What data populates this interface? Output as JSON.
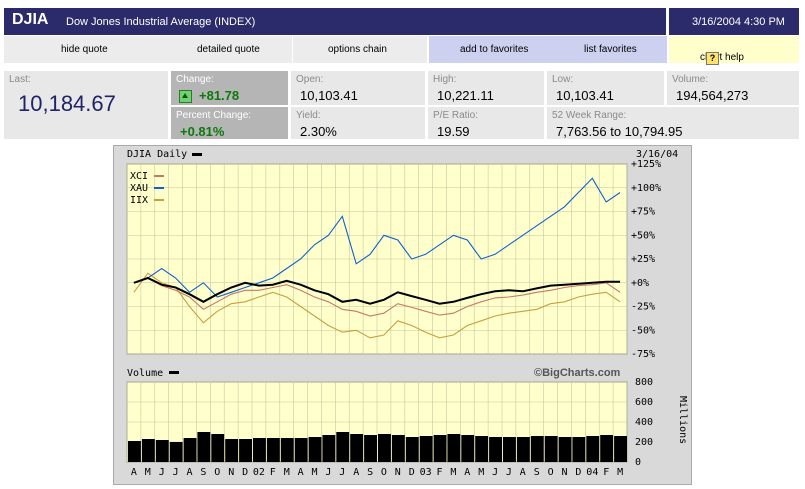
{
  "header": {
    "symbol": "DJIA",
    "name": "Dow Jones Industrial Average (INDEX)",
    "datetime": "3/16/2004 4:30 PM"
  },
  "nav": {
    "hide_quote": "hide quote",
    "detailed_quote": "detailed quote",
    "options_chain": "options chain",
    "add_favorites": "add to favorites",
    "list_favorites": "list favorites",
    "chart_help": "chart help",
    "help_icon_text": "?"
  },
  "quote": {
    "last_label": "Last:",
    "last_value": "10,184.67",
    "change_label": "Change:",
    "change_value": "+81.78",
    "pct_change_label": "Percent Change:",
    "pct_change_value": "+0.81%",
    "open_label": "Open:",
    "open_value": "10,103.41",
    "yield_label": "Yield:",
    "yield_value": "2.30%",
    "high_label": "High:",
    "high_value": "10,221.11",
    "pe_label": "P/E Ratio:",
    "pe_value": "19.59",
    "low_label": "Low:",
    "low_value": "10,103.41",
    "week52_label": "52 Week Range:",
    "week52_value": "7,763.56 to 10,794.95",
    "volume_label": "Volume:",
    "volume_value": "194,564,273"
  },
  "chart": {
    "price_panel_title": "DJIA Daily",
    "date": "3/16/04",
    "volume_panel_title": "Volume",
    "watermark": "©BigCharts.com",
    "legend": [
      {
        "name": "XCI",
        "color": "#c8786a"
      },
      {
        "name": "XAU",
        "color": "#1060d0"
      },
      {
        "name": "IIX",
        "color": "#c8a040"
      }
    ],
    "djia_color": "#000000"
  },
  "chart_data": [
    {
      "type": "line",
      "title": "DJIA Daily",
      "yaxis_format": "percent change",
      "ylim": [
        -75,
        125
      ],
      "y_ticks": [
        "+125%",
        "+100%",
        "+75%",
        "+50%",
        "+25%",
        "+0%",
        "-25%",
        "-50%",
        "-75%"
      ],
      "x_ticks": [
        "A",
        "M",
        "J",
        "J",
        "A",
        "S",
        "O",
        "N",
        "D",
        "02",
        "F",
        "M",
        "A",
        "M",
        "J",
        "J",
        "A",
        "S",
        "O",
        "N",
        "D",
        "03",
        "F",
        "M",
        "A",
        "M",
        "J",
        "J",
        "A",
        "S",
        "O",
        "N",
        "D",
        "04",
        "F",
        "M"
      ],
      "series": [
        {
          "name": "DJIA",
          "color": "#000000",
          "values": [
            0,
            5,
            -2,
            -5,
            -12,
            -20,
            -12,
            -5,
            0,
            -3,
            -2,
            2,
            -2,
            -8,
            -12,
            -20,
            -18,
            -22,
            -18,
            -10,
            -14,
            -18,
            -22,
            -20,
            -16,
            -12,
            -9,
            -8,
            -9,
            -6,
            -3,
            -2,
            -1,
            0,
            1,
            1
          ]
        },
        {
          "name": "XCI",
          "color": "#c8786a",
          "values": [
            0,
            5,
            -3,
            -8,
            -15,
            -28,
            -20,
            -12,
            -8,
            -8,
            -5,
            -2,
            -8,
            -15,
            -20,
            -28,
            -30,
            -35,
            -32,
            -22,
            -26,
            -30,
            -34,
            -32,
            -25,
            -20,
            -16,
            -15,
            -13,
            -10,
            -8,
            -5,
            -3,
            -2,
            0,
            -10
          ]
        },
        {
          "name": "XAU",
          "color": "#1060d0",
          "values": [
            0,
            5,
            15,
            5,
            -10,
            0,
            -15,
            -10,
            -5,
            0,
            5,
            15,
            25,
            40,
            50,
            70,
            20,
            30,
            50,
            45,
            25,
            30,
            40,
            50,
            45,
            25,
            30,
            40,
            50,
            60,
            70,
            80,
            95,
            110,
            85,
            95
          ]
        },
        {
          "name": "IIX",
          "color": "#c8a040",
          "values": [
            -10,
            10,
            0,
            -5,
            -25,
            -42,
            -30,
            -22,
            -20,
            -15,
            -10,
            -15,
            -25,
            -35,
            -45,
            -52,
            -50,
            -58,
            -55,
            -40,
            -45,
            -52,
            -58,
            -55,
            -45,
            -40,
            -35,
            -32,
            -30,
            -28,
            -22,
            -20,
            -15,
            -12,
            -10,
            -20
          ]
        }
      ]
    },
    {
      "type": "bar",
      "title": "Volume",
      "ylabel": "Millions",
      "ylim": [
        0,
        800
      ],
      "y_ticks": [
        "800",
        "600",
        "400",
        "200",
        "0"
      ],
      "categories": [
        "A",
        "M",
        "J",
        "J",
        "A",
        "S",
        "O",
        "N",
        "D",
        "02",
        "F",
        "M",
        "A",
        "M",
        "J",
        "J",
        "A",
        "S",
        "O",
        "N",
        "D",
        "03",
        "F",
        "M",
        "A",
        "M",
        "J",
        "J",
        "A",
        "S",
        "O",
        "N",
        "D",
        "04",
        "F",
        "M"
      ],
      "values": [
        210,
        230,
        220,
        200,
        240,
        300,
        280,
        230,
        230,
        240,
        240,
        240,
        240,
        250,
        270,
        300,
        280,
        270,
        280,
        270,
        250,
        260,
        270,
        280,
        270,
        260,
        250,
        250,
        250,
        260,
        260,
        250,
        250,
        260,
        270,
        260
      ]
    }
  ]
}
